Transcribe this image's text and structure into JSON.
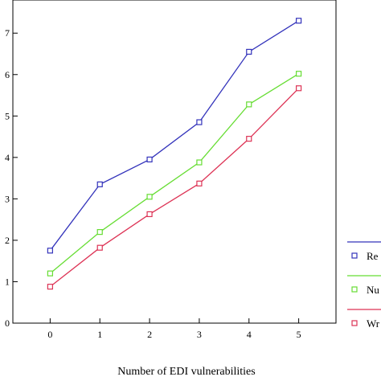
{
  "chart_data": {
    "type": "line",
    "title": "",
    "xlabel": "Number of EDI vulnerabilities",
    "ylabel": "",
    "x": [
      0,
      1,
      2,
      3,
      4,
      5
    ],
    "x_tick_labels": [
      "0",
      "1",
      "2",
      "3",
      "4",
      "5"
    ],
    "xlim": [
      -0.75,
      5.75
    ],
    "ylim": [
      0,
      7.8
    ],
    "y_ticks": [
      0,
      1,
      2,
      3,
      4,
      5,
      6,
      7
    ],
    "y_tick_labels": [
      "0",
      "1",
      "2",
      "3",
      "4",
      "5",
      "6",
      "7"
    ],
    "grid": false,
    "legend_position": "right",
    "series": [
      {
        "name": "Re",
        "color": "#3333bb",
        "marker": "square",
        "values": [
          1.75,
          3.35,
          3.95,
          4.85,
          6.55,
          7.3
        ]
      },
      {
        "name": "Nu",
        "color": "#66dd33",
        "marker": "square",
        "values": [
          1.2,
          2.2,
          3.05,
          3.88,
          5.28,
          6.02
        ]
      },
      {
        "name": "Wr",
        "color": "#dd3355",
        "marker": "square",
        "values": [
          0.88,
          1.82,
          2.63,
          3.37,
          4.45,
          5.67
        ]
      }
    ]
  }
}
